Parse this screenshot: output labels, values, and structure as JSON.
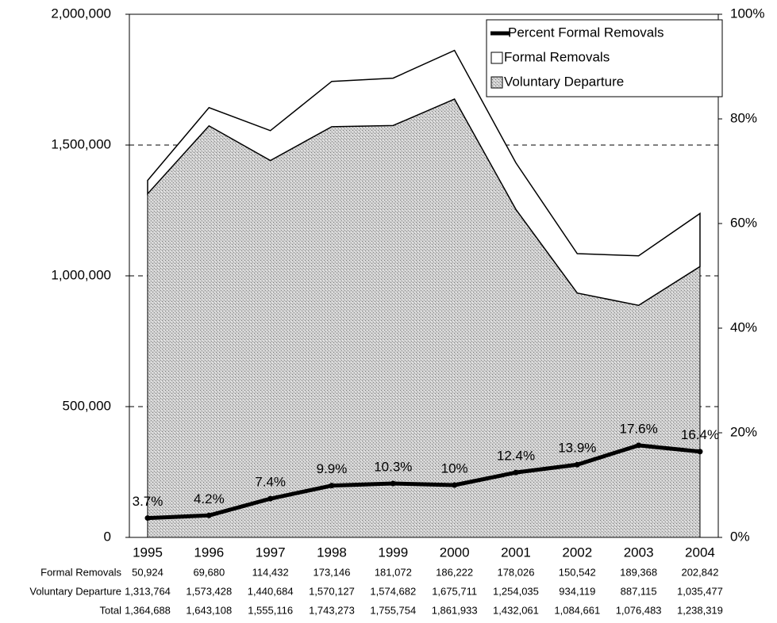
{
  "chart_data": {
    "type": "stacked-area-line",
    "categories": [
      "1995",
      "1996",
      "1997",
      "1998",
      "1999",
      "2000",
      "2001",
      "2002",
      "2003",
      "2004"
    ],
    "series": [
      {
        "name": "Voluntary Departure",
        "color": "#c4c4c4",
        "values": [
          1313764,
          1573428,
          1440684,
          1570127,
          1574682,
          1675711,
          1254035,
          934119,
          887115,
          1035477
        ],
        "value_labels": [
          "1,313,764",
          "1,573,428",
          "1,440,684",
          "1,570,127",
          "1,574,682",
          "1,675,711",
          "1,254,035",
          "934,119",
          "887,115",
          "1,035,477"
        ]
      },
      {
        "name": "Formal Removals",
        "color": "#ffffff",
        "values": [
          50924,
          69680,
          114432,
          173146,
          181072,
          186222,
          178026,
          150542,
          189368,
          202842
        ],
        "value_labels": [
          "50,924",
          "69,680",
          "114,432",
          "173,146",
          "181,072",
          "186,222",
          "178,026",
          "150,542",
          "189,368",
          "202,842"
        ]
      },
      {
        "name": "Percent Formal Removals",
        "color": "#000000",
        "axis": "y2",
        "values": [
          3.7,
          4.2,
          7.4,
          9.9,
          10.3,
          10,
          12.4,
          13.9,
          17.6,
          16.4
        ],
        "value_labels": [
          "3.7%",
          "4.2%",
          "7.4%",
          "9.9%",
          "10.3%",
          "10%",
          "12.4%",
          "13.9%",
          "17.6%",
          "16.4%"
        ]
      }
    ],
    "total": {
      "name": "Total",
      "values": [
        1364688,
        1643108,
        1555116,
        1743273,
        1755754,
        1861933,
        1432061,
        1084661,
        1076483,
        1238319
      ],
      "value_labels": [
        "1,364,688",
        "1,643,108",
        "1,555,116",
        "1,743,273",
        "1,755,754",
        "1,861,933",
        "1,432,061",
        "1,084,661",
        "1,076,483",
        "1,238,319"
      ]
    },
    "ylim": [
      0,
      2000000
    ],
    "yticks": [
      0,
      {
        "value": 500000,
        "label": "500,000"
      },
      {
        "value": 1000000,
        "label": "1,000,000"
      },
      {
        "value": 1500000,
        "label": "1,500,000"
      },
      {
        "value": 2000000,
        "label": "2,000,000"
      }
    ],
    "y2lim": [
      0,
      100
    ],
    "y2ticks": [
      {
        "value": 0,
        "label": "0%"
      },
      {
        "value": 20,
        "label": "20%"
      },
      {
        "value": 40,
        "label": "40%"
      },
      {
        "value": 60,
        "label": "60%"
      },
      {
        "value": 80,
        "label": "80%"
      },
      {
        "value": 100,
        "label": "100%"
      }
    ],
    "grid": true,
    "legend": "upper right"
  }
}
